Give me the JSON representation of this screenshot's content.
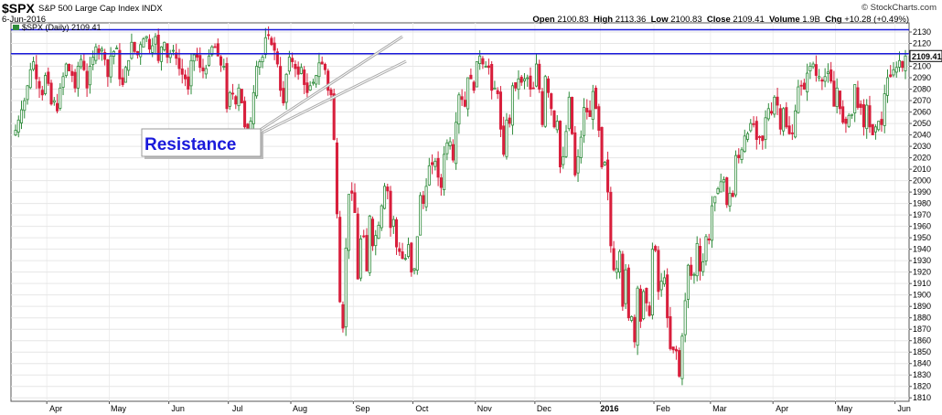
{
  "header": {
    "symbol": "$SPX",
    "name": "S&P 500 Large Cap Index",
    "exchange": "INDX",
    "date": "6-Jun-2016",
    "credit": "© StockCharts.com",
    "open_label": "Open",
    "open": "2100.83",
    "high_label": "High",
    "high": "2113.36",
    "low_label": "Low",
    "low": "2100.83",
    "close_label": "Close",
    "close": "2109.41",
    "volume_label": "Volume",
    "volume": "1.9B",
    "chg_label": "Chg",
    "chg": "+10.28 (+0.49%)"
  },
  "legend": {
    "label": "$SPX (Daily) 2109.41"
  },
  "colors": {
    "up": "#2e8b3a",
    "down": "#d81f3c",
    "resistance": "#1a1adb",
    "callout_text": "#1a1adb"
  },
  "chart_data": {
    "type": "candlestick",
    "title": "$SPX S&P 500 Large Cap Index INDX",
    "ylim": [
      1807,
      2138
    ],
    "yticks": [
      1810,
      1820,
      1830,
      1840,
      1850,
      1860,
      1870,
      1880,
      1890,
      1900,
      1910,
      1920,
      1930,
      1940,
      1950,
      1960,
      1970,
      1980,
      1990,
      2000,
      2010,
      2020,
      2030,
      2040,
      2050,
      2060,
      2070,
      2080,
      2090,
      2100,
      2110,
      2120,
      2130
    ],
    "xticks": [
      "Apr",
      "May",
      "Jun",
      "Jul",
      "Aug",
      "Sep",
      "Oct",
      "Nov",
      "Dec",
      "2016",
      "Feb",
      "Mar",
      "Apr",
      "May",
      "Jun"
    ],
    "last_price": "2109.41",
    "resistance_lines": [
      2132,
      2111
    ],
    "annotations": [
      {
        "text": "Resistance"
      }
    ],
    "series": [
      {
        "name": "Mar-2015",
        "closes": [
          2044,
          2053,
          2062,
          2070,
          2083,
          2097,
          2104,
          2089,
          2081,
          2075,
          2092
        ]
      },
      {
        "name": "Apr-2015",
        "closes": [
          2085,
          2067,
          2070,
          2061,
          2081,
          2091,
          2102,
          2096,
          2092,
          2081,
          2100,
          2106,
          2097,
          2081,
          2100,
          2108,
          2117,
          2112,
          2115,
          2106,
          2091
        ]
      },
      {
        "name": "May-2015",
        "closes": [
          2109,
          2113,
          2116,
          2089,
          2084,
          2099,
          2105,
          2121,
          2113,
          2110,
          2119,
          2124,
          2126,
          2115,
          2118,
          2126,
          2105,
          2117,
          2121,
          2108
        ]
      },
      {
        "name": "Jun-2015",
        "closes": [
          2111,
          2114,
          2107,
          2098,
          2093,
          2089,
          2080,
          2105,
          2110,
          2108,
          2099,
          2096,
          2098,
          2109,
          2117,
          2117,
          2109,
          2101,
          2100,
          2063
        ]
      },
      {
        "name": "Jul-2015",
        "closes": [
          2077,
          2076,
          2067,
          2081,
          2068,
          2047,
          2046,
          2052,
          2077,
          2100,
          2104,
          2108,
          2125,
          2127,
          2119,
          2114,
          2102,
          2079,
          2068,
          2093,
          2108
        ]
      },
      {
        "name": "Aug-2015",
        "closes": [
          2104,
          2098,
          2093,
          2099,
          2084,
          2077,
          2083,
          2086,
          2092,
          2103,
          2102,
          2097,
          2079,
          2075,
          2036,
          1971,
          1894,
          1871,
          1941,
          1988,
          1989
        ]
      },
      {
        "name": "Sep-2015",
        "closes": [
          1972,
          1914,
          1949,
          1951,
          1921,
          1969,
          1943,
          1952,
          1961,
          1978,
          1995,
          1991,
          1959,
          1966,
          1942,
          1938,
          1932,
          1932,
          1944,
          1920
        ]
      },
      {
        "name": "Oct-2015",
        "closes": [
          1923,
          1951,
          1987,
          1980,
          1995,
          2013,
          2014,
          2017,
          2003,
          1994,
          2023,
          2033,
          2034,
          2018,
          2051,
          2075,
          2071,
          2065,
          2090,
          2089,
          2079
        ]
      },
      {
        "name": "Nov-2015",
        "closes": [
          2104,
          2109,
          2102,
          2100,
          2099,
          2079,
          2081,
          2076,
          2045,
          2023,
          2053,
          2050,
          2083,
          2081,
          2089,
          2086,
          2089,
          2090,
          2080,
          2081
        ]
      },
      {
        "name": "Dec-2015",
        "closes": [
          2102,
          2080,
          2049,
          2091,
          2077,
          2063,
          2047,
          2052,
          2012,
          2021,
          2043,
          2073,
          2041,
          2005,
          2021,
          2038,
          2064,
          2060,
          2056,
          2078,
          2063,
          2044
        ]
      },
      {
        "name": "Jan-2016",
        "closes": [
          2012,
          2016,
          1990,
          1943,
          1922,
          1923,
          1938,
          1890,
          1922,
          1880,
          1881,
          1859,
          1906,
          1877,
          1903,
          1893,
          1882,
          1940
        ]
      },
      {
        "name": "Feb-2016",
        "closes": [
          1939,
          1903,
          1912,
          1915,
          1880,
          1853,
          1852,
          1851,
          1829,
          1864,
          1895,
          1926,
          1917,
          1918,
          1945,
          1921,
          1929,
          1951,
          1948
        ]
      },
      {
        "name": "Mar-2016",
        "closes": [
          1978,
          1986,
          1993,
          1999,
          2001,
          1979,
          1989,
          1986,
          2022,
          2020,
          2027,
          2039,
          2041,
          2050,
          2049,
          2036,
          2038,
          2035,
          2055,
          2063,
          2059
        ]
      },
      {
        "name": "Apr-2016",
        "closes": [
          2073,
          2066,
          2045,
          2063,
          2047,
          2041,
          2041,
          2061,
          2082,
          2083,
          2080,
          2094,
          2100,
          2102,
          2092,
          2091,
          2087,
          2091,
          2095,
          2087,
          2065
        ]
      },
      {
        "name": "May-2016",
        "closes": [
          2081,
          2063,
          2051,
          2050,
          2057,
          2058,
          2084,
          2064,
          2064,
          2047,
          2066,
          2047,
          2040,
          2047,
          2052,
          2049,
          2076,
          2090,
          2091,
          2097
        ]
      },
      {
        "name": "Jun-2016",
        "closes": [
          2099,
          2105,
          2099,
          2109
        ]
      }
    ]
  }
}
